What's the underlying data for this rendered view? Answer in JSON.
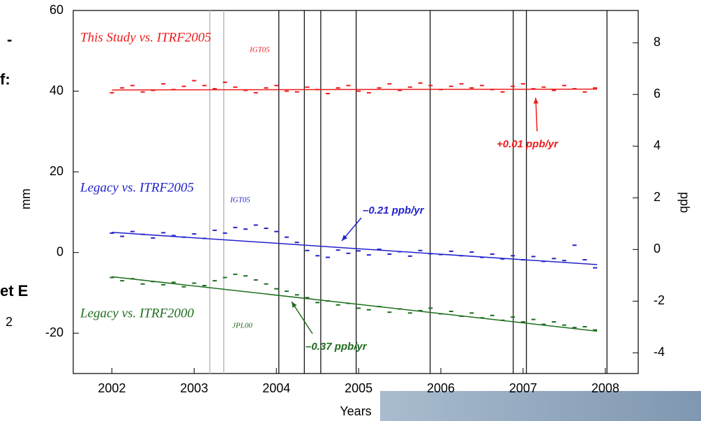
{
  "chart_data": {
    "type": "scatter",
    "xlabel": "Years",
    "ylabel": "mm",
    "y2label": "ppb",
    "xlim": [
      2001.53,
      2008.4
    ],
    "ylim": [
      -30,
      60
    ],
    "y2lim": [
      -4.8,
      9.25
    ],
    "xticks": [
      2002,
      2003,
      2004,
      2005,
      2006,
      2007,
      2008
    ],
    "yticks": [
      -20,
      0,
      20,
      40,
      60
    ],
    "y2ticks": [
      -4,
      -2,
      0,
      2,
      4,
      6,
      8
    ],
    "vertical_lines_gray": [
      2003.19,
      2003.36
    ],
    "vertical_lines": [
      2004.03,
      2004.34,
      2004.54,
      2004.97,
      2005.87,
      2006.88,
      2007.04,
      2008.02
    ],
    "x": [
      2002.0,
      2002.125,
      2002.25,
      2002.375,
      2002.5,
      2002.625,
      2002.75,
      2002.875,
      2003.0,
      2003.125,
      2003.25,
      2003.375,
      2003.5,
      2003.625,
      2003.75,
      2003.875,
      2004.0,
      2004.125,
      2004.25,
      2004.375,
      2004.5,
      2004.625,
      2004.75,
      2004.875,
      2005.0,
      2005.125,
      2005.25,
      2005.375,
      2005.5,
      2005.625,
      2005.75,
      2005.875,
      2006.0,
      2006.125,
      2006.25,
      2006.375,
      2006.5,
      2006.625,
      2006.75,
      2006.875,
      2007.0,
      2007.125,
      2007.25,
      2007.375,
      2007.5,
      2007.625,
      2007.75,
      2007.875
    ],
    "trend_x": [
      2002,
      2007.9
    ],
    "series": [
      {
        "name": "This Study vs. ITRF2005",
        "subscript": "IGT05",
        "color": "#ee1c1c",
        "rate": "+0.01 ppb/yr",
        "values": [
          39.6,
          40.8,
          41.4,
          39.8,
          40.2,
          41.8,
          40.4,
          41.2,
          42.6,
          41.4,
          40.6,
          42.2,
          41.0,
          40.2,
          39.6,
          40.8,
          41.4,
          40.0,
          39.8,
          41.0,
          40.4,
          39.4,
          40.8,
          41.4,
          40.0,
          39.6,
          40.8,
          41.8,
          40.2,
          41.0,
          42.0,
          41.4,
          40.4,
          41.2,
          41.8,
          40.8,
          41.4,
          40.4,
          39.8,
          41.2,
          41.8,
          40.6,
          41.0,
          40.2,
          41.4,
          40.6,
          39.8,
          40.8
        ],
        "trend": [
          40.3,
          40.5
        ]
      },
      {
        "name": "Legacy vs. ITRF2005",
        "subscript": "IGT05",
        "color": "#2222cc",
        "rate": "–0.21 ppb/yr",
        "values": [
          4.8,
          4.0,
          5.2,
          4.5,
          3.6,
          4.9,
          4.2,
          3.8,
          4.6,
          3.5,
          5.5,
          4.8,
          6.2,
          5.8,
          6.8,
          6.0,
          5.2,
          3.8,
          2.5,
          0.5,
          -0.8,
          -1.2,
          0.6,
          -0.2,
          0.4,
          -0.6,
          0.8,
          -0.4,
          0.2,
          -0.9,
          0.5,
          -0.3,
          -0.5,
          0.3,
          -0.8,
          0.1,
          -1.2,
          -0.4,
          -1.6,
          -0.8,
          -1.8,
          -1.0,
          -2.2,
          -1.5,
          -2.0,
          1.8,
          -1.8,
          -3.8
        ],
        "trend": [
          5,
          -3
        ]
      },
      {
        "name": "Legacy vs. ITRF2000",
        "subscript": "JPL00",
        "color": "#1e6e1e",
        "rate": "–0.37 ppb/yr",
        "values": [
          -6.2,
          -7.0,
          -6.5,
          -7.8,
          -7.2,
          -8.0,
          -7.4,
          -8.5,
          -7.6,
          -8.2,
          -7.0,
          -6.2,
          -5.4,
          -5.8,
          -6.8,
          -7.8,
          -9.0,
          -9.6,
          -10.5,
          -11.2,
          -12.4,
          -12.0,
          -13.0,
          -12.6,
          -13.8,
          -14.2,
          -13.4,
          -14.8,
          -14.0,
          -15.0,
          -14.4,
          -13.8,
          -15.2,
          -14.6,
          -15.8,
          -15.0,
          -16.2,
          -15.6,
          -16.8,
          -16.0,
          -17.2,
          -16.6,
          -17.8,
          -17.2,
          -18.0,
          -18.6,
          -18.4,
          -19.2
        ],
        "trend": [
          -6,
          -19.5
        ]
      }
    ]
  },
  "fragments": [
    "-",
    "f:",
    "et E",
    "2"
  ]
}
